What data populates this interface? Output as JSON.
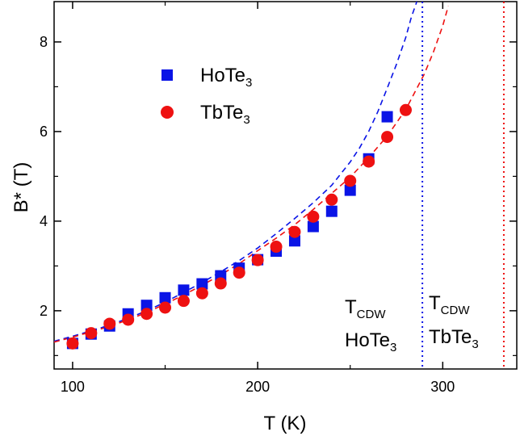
{
  "chart_data": {
    "type": "scatter",
    "xlabel": "T (K)",
    "ylabel": "B* (T)",
    "xlim": [
      90,
      340
    ],
    "ylim": [
      0.7,
      8.9
    ],
    "xticks": [
      100,
      200,
      300
    ],
    "yticks": [
      2,
      4,
      6,
      8
    ],
    "legend_position": "top-left",
    "series": [
      {
        "name": "HoTe",
        "name_sub": "3",
        "marker": "square",
        "color": "#0a14e6",
        "x": [
          100,
          110,
          120,
          130,
          140,
          150,
          160,
          170,
          180,
          190,
          200,
          210,
          220,
          230,
          240,
          250,
          260,
          270
        ],
        "y": [
          1.27,
          1.48,
          1.66,
          1.93,
          2.12,
          2.29,
          2.46,
          2.6,
          2.78,
          2.95,
          3.14,
          3.33,
          3.56,
          3.88,
          4.22,
          4.69,
          5.39,
          6.33
        ]
      },
      {
        "name": "TbTe",
        "name_sub": "3",
        "marker": "circle",
        "color": "#ee1111",
        "x": [
          100,
          110,
          120,
          130,
          140,
          150,
          160,
          170,
          180,
          190,
          200,
          210,
          220,
          230,
          240,
          250,
          260,
          270,
          280
        ],
        "y": [
          1.27,
          1.5,
          1.71,
          1.8,
          1.93,
          2.07,
          2.22,
          2.39,
          2.61,
          2.85,
          3.13,
          3.43,
          3.76,
          4.1,
          4.48,
          4.9,
          5.33,
          5.88,
          6.48
        ]
      }
    ],
    "fits": [
      {
        "color": "#0a14e6",
        "style": "dashed",
        "x": [
          90,
          100,
          110,
          120,
          130,
          140,
          150,
          160,
          170,
          180,
          190,
          200,
          210,
          220,
          230,
          240,
          250,
          255,
          260,
          265,
          270,
          275,
          280,
          283,
          286
        ],
        "y": [
          1.32,
          1.43,
          1.55,
          1.68,
          1.83,
          2.0,
          2.19,
          2.41,
          2.63,
          2.87,
          3.12,
          3.4,
          3.72,
          4.06,
          4.41,
          4.8,
          5.32,
          5.63,
          6.0,
          6.45,
          6.97,
          7.5,
          8.1,
          8.55,
          8.9
        ]
      },
      {
        "color": "#ee1111",
        "style": "dashed",
        "x": [
          90,
          100,
          110,
          120,
          130,
          140,
          150,
          160,
          170,
          180,
          190,
          200,
          210,
          220,
          230,
          240,
          250,
          260,
          270,
          280,
          290,
          295,
          300,
          303
        ],
        "y": [
          1.3,
          1.41,
          1.53,
          1.65,
          1.8,
          1.96,
          2.15,
          2.35,
          2.57,
          2.8,
          3.05,
          3.34,
          3.62,
          3.92,
          4.26,
          4.62,
          4.98,
          5.42,
          5.9,
          6.49,
          7.28,
          7.78,
          8.36,
          8.8
        ]
      }
    ],
    "vlines": [
      {
        "x": 289,
        "color": "#0a14e6",
        "style": "dotted"
      },
      {
        "x": 333,
        "color": "#ee1111",
        "style": "dotted"
      }
    ],
    "annotations": [
      {
        "text": "T",
        "sub": "CDW",
        "line2": "HoTe",
        "line2_sub": "3"
      },
      {
        "text": "T",
        "sub": "CDW",
        "line2": "TbTe",
        "line2_sub": "3"
      }
    ]
  }
}
